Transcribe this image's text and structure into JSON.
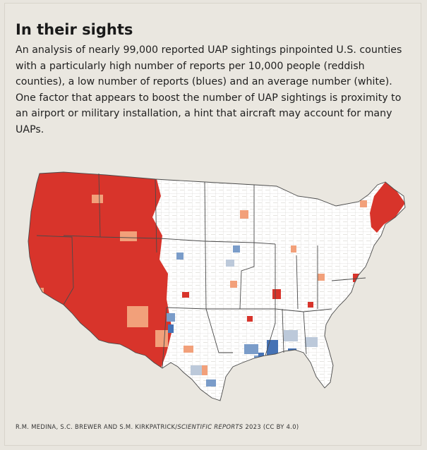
{
  "figure": {
    "title": "In their sights",
    "subtitle": "An analysis of nearly 99,000 reported UAP sightings pinpointed U.S. counties with a particularly high number of reports per 10,000 people (reddish counties), a low number of reports (blues) and an average number (white). One factor that appears to boost the number of UAP sightings is proximity to an airport or military installation, a hint that aircraft may account for many UAPs.",
    "credit": {
      "authors": "R.M. MEDINA, S.C. BREWER AND S.M. KIRKPATRICK/",
      "journal": "SCIENTIFIC REPORTS",
      "suffix": " 2023 (CC BY 4.0)"
    }
  },
  "map": {
    "colors": {
      "high": "#d8342b",
      "moderate_high": "#f2a07a",
      "average": "#ffffff",
      "low": "#7a9cc9",
      "very_low": "#4572b5",
      "county_border": "#c9c6c0",
      "state_border": "#4a4a4a",
      "background": "#eae7e0"
    }
  }
}
